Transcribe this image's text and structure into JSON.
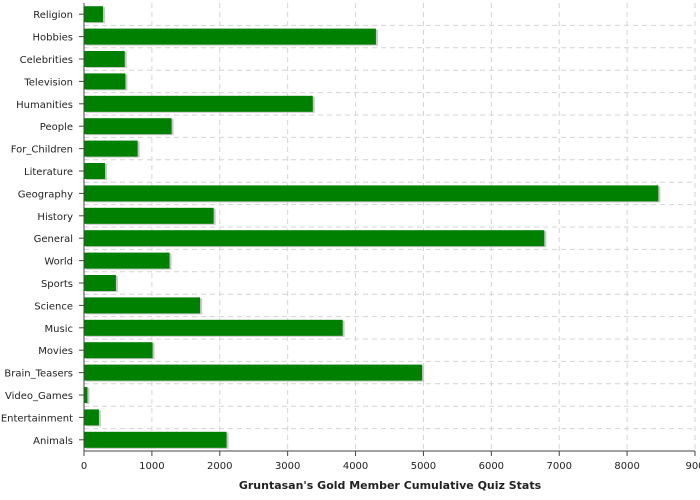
{
  "chart_data": {
    "type": "bar",
    "orientation": "horizontal",
    "categories": [
      "Religion",
      "Hobbies",
      "Celebrities",
      "Television",
      "Humanities",
      "People",
      "For_Children",
      "Literature",
      "Geography",
      "History",
      "General",
      "World",
      "Sports",
      "Science",
      "Music",
      "Movies",
      "Brain_Teasers",
      "Video_Games",
      "Entertainment",
      "Animals"
    ],
    "values": [
      280,
      4300,
      600,
      610,
      3370,
      1290,
      790,
      310,
      8460,
      1910,
      6780,
      1260,
      470,
      1710,
      3810,
      1010,
      4980,
      50,
      220,
      2100
    ],
    "title": "",
    "xlabel": "Gruntasan's Gold Member Cumulative Quiz Stats",
    "ylabel": "",
    "xlim": [
      0,
      9000
    ],
    "xticks": [
      "0",
      "1000",
      "2000",
      "3000",
      "4000",
      "5000",
      "6000",
      "7000",
      "8000",
      "900"
    ],
    "grid": true,
    "bar_color": "#008000",
    "grid_color": "#d4d4d4"
  }
}
